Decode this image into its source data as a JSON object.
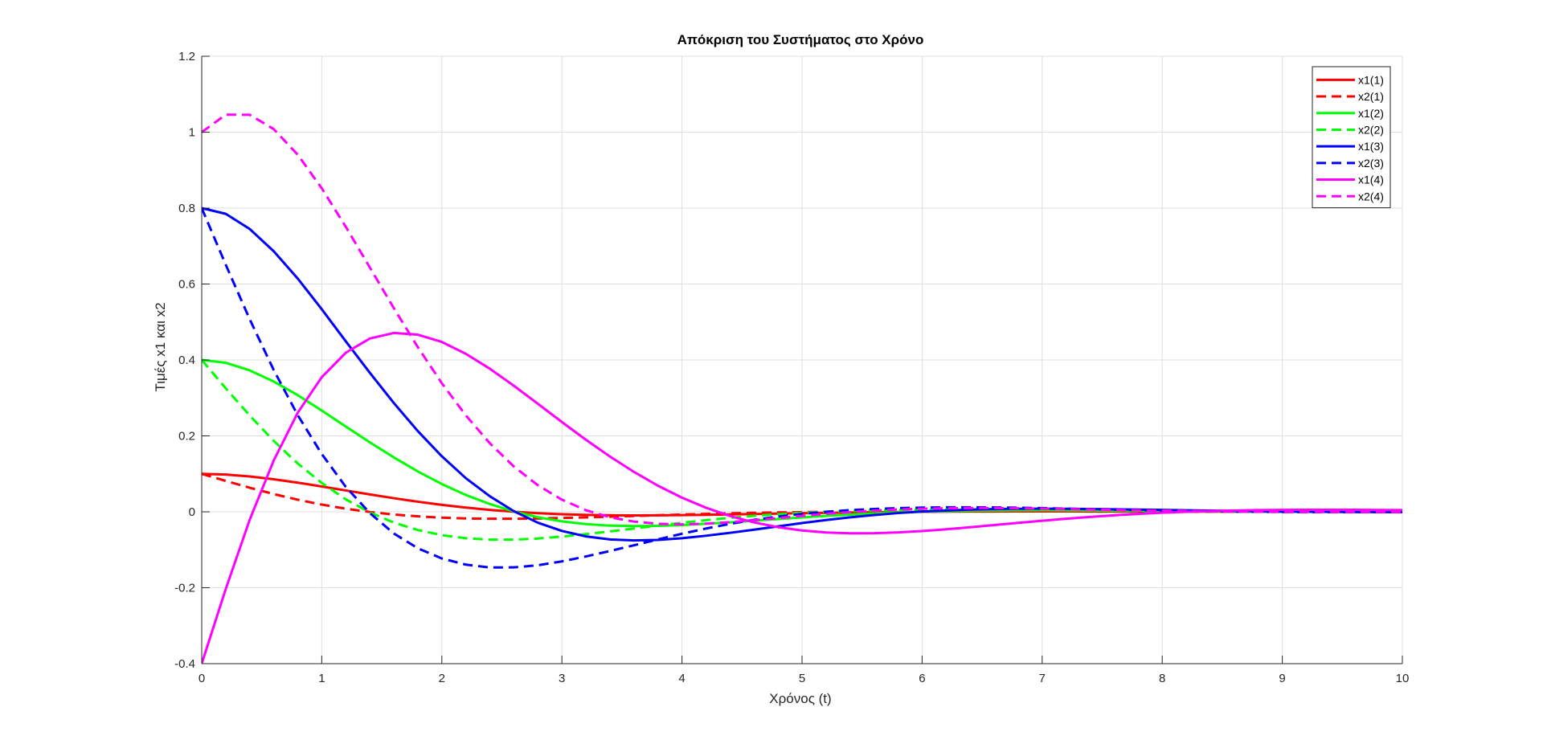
{
  "chart_data": {
    "type": "line",
    "title": "Απόκριση του Συστήματος στο Χρόνο",
    "xlabel": "Χρόνος (t)",
    "ylabel": "Τιμές x1 και x2",
    "xlim": [
      0,
      10
    ],
    "ylim": [
      -0.4,
      1.2
    ],
    "xticks": [
      0,
      1,
      2,
      3,
      4,
      5,
      6,
      7,
      8,
      9,
      10
    ],
    "yticks": [
      -0.4,
      -0.2,
      0,
      0.2,
      0.4,
      0.6,
      0.8,
      1,
      1.2
    ],
    "xtick_labels": [
      "0",
      "1",
      "2",
      "3",
      "4",
      "5",
      "6",
      "7",
      "8",
      "9",
      "10"
    ],
    "ytick_labels": [
      "-0.4",
      "-0.2",
      "0",
      "0.2",
      "0.4",
      "0.6",
      "0.8",
      "1",
      "1.2"
    ],
    "grid": true,
    "legend_position": "top-right",
    "x": [
      0,
      0.2,
      0.4,
      0.6,
      0.8,
      1.0,
      1.2,
      1.4,
      1.6,
      1.8,
      2.0,
      2.2,
      2.4,
      2.6,
      2.8,
      3.0,
      3.2,
      3.4,
      3.6,
      3.8,
      4.0,
      4.2,
      4.4,
      4.6,
      4.8,
      5.0,
      5.2,
      5.4,
      5.6,
      5.8,
      6.0,
      6.2,
      6.4,
      6.6,
      6.8,
      7.0,
      7.2,
      7.4,
      7.6,
      7.8,
      8.0,
      8.2,
      8.4,
      8.6,
      8.8,
      9.0,
      9.2,
      9.4,
      9.6,
      9.8,
      10.0
    ],
    "series": [
      {
        "name": "x1(1)",
        "color": "#FF0000",
        "style": "solid",
        "values": [
          0.1,
          0.0981,
          0.0931,
          0.0858,
          0.0768,
          0.0667,
          0.0562,
          0.0458,
          0.0358,
          0.0266,
          0.0183,
          0.0111,
          0.0051,
          0.0002,
          -0.0036,
          -0.0063,
          -0.0081,
          -0.0091,
          -0.0094,
          -0.0093,
          -0.0087,
          -0.0079,
          -0.0069,
          -0.0059,
          -0.0048,
          -0.0037,
          -0.0027,
          -0.0018,
          -0.0011,
          -0.0004,
          0.0001,
          0.0004,
          0.0007,
          0.0009,
          0.001,
          0.001,
          0.001,
          0.0009,
          0.0008,
          0.0007,
          0.0006,
          0.0005,
          0.0004,
          0.0003,
          0.0002,
          0.0001,
          0.0,
          -0.0,
          -0.0001,
          -0.0001,
          -0.0001
        ]
      },
      {
        "name": "x2(1)",
        "color": "#FF0000",
        "style": "dashed",
        "values": [
          0.1,
          0.0814,
          0.0634,
          0.0467,
          0.0318,
          0.019,
          0.0082,
          -0.0004,
          -0.0071,
          -0.012,
          -0.0154,
          -0.0174,
          -0.0183,
          -0.0183,
          -0.0176,
          -0.0163,
          -0.0147,
          -0.0129,
          -0.011,
          -0.0091,
          -0.0072,
          -0.0055,
          -0.004,
          -0.0027,
          -0.0016,
          -0.0007,
          0.0,
          0.0006,
          0.001,
          0.0012,
          0.0014,
          0.0015,
          0.0015,
          0.0014,
          0.0013,
          0.0012,
          0.001,
          0.0009,
          0.0007,
          0.0006,
          0.0004,
          0.0003,
          0.0002,
          0.0001,
          0.0,
          -0.0,
          -0.0001,
          -0.0001,
          -0.0001,
          -0.0001,
          -0.0001
        ]
      },
      {
        "name": "x1(2)",
        "color": "#00FF00",
        "style": "solid",
        "values": [
          0.4,
          0.3925,
          0.3725,
          0.3431,
          0.3072,
          0.2667,
          0.2246,
          0.1831,
          0.1433,
          0.1063,
          0.0731,
          0.0443,
          0.0204,
          0.0008,
          -0.0143,
          -0.0252,
          -0.0324,
          -0.0364,
          -0.0377,
          -0.037,
          -0.0348,
          -0.0315,
          -0.0277,
          -0.0235,
          -0.0191,
          -0.0149,
          -0.0108,
          -0.0073,
          -0.0042,
          -0.0017,
          0.0004,
          0.0017,
          0.0029,
          0.0035,
          0.0039,
          0.0041,
          0.0039,
          0.0036,
          0.0033,
          0.0029,
          0.0024,
          0.002,
          0.0016,
          0.0012,
          0.0008,
          0.0005,
          0.0002,
          -0.0,
          -0.0002,
          -0.0003,
          -0.0004
        ]
      },
      {
        "name": "x2(2)",
        "color": "#00FF00",
        "style": "dashed",
        "values": [
          0.4,
          0.3255,
          0.2535,
          0.1866,
          0.1272,
          0.0761,
          0.0328,
          -0.0016,
          -0.0285,
          -0.048,
          -0.0615,
          -0.0696,
          -0.0733,
          -0.0732,
          -0.0704,
          -0.0653,
          -0.0588,
          -0.0517,
          -0.0441,
          -0.0364,
          -0.0289,
          -0.022,
          -0.0159,
          -0.0106,
          -0.0063,
          -0.0028,
          0.0,
          0.0022,
          0.0038,
          0.0049,
          0.0055,
          0.0059,
          0.0059,
          0.0057,
          0.0054,
          0.0048,
          0.0041,
          0.0035,
          0.0028,
          0.0022,
          0.0017,
          0.0012,
          0.0007,
          0.0003,
          0.0,
          -0.0002,
          -0.0003,
          -0.0004,
          -0.0004,
          -0.0005,
          -0.0004
        ]
      },
      {
        "name": "x1(3)",
        "color": "#0000FF",
        "style": "solid",
        "values": [
          0.8,
          0.7849,
          0.7449,
          0.6863,
          0.6144,
          0.5335,
          0.4491,
          0.3662,
          0.2866,
          0.2126,
          0.1462,
          0.0885,
          0.0409,
          0.0016,
          -0.0287,
          -0.0504,
          -0.0648,
          -0.0728,
          -0.0754,
          -0.074,
          -0.0696,
          -0.0631,
          -0.0554,
          -0.047,
          -0.0383,
          -0.0297,
          -0.0216,
          -0.0145,
          -0.0084,
          -0.0033,
          0.0007,
          0.0035,
          0.0057,
          0.0071,
          0.0078,
          0.0081,
          0.0079,
          0.0073,
          0.0066,
          0.0058,
          0.0049,
          0.004,
          0.0031,
          0.0023,
          0.0016,
          0.0009,
          0.0004,
          -0.0001,
          -0.0004,
          -0.0006,
          -0.0008
        ]
      },
      {
        "name": "x2(3)",
        "color": "#0000FF",
        "style": "dashed",
        "values": [
          0.8,
          0.651,
          0.507,
          0.3732,
          0.2544,
          0.1522,
          0.0656,
          -0.0032,
          -0.057,
          -0.0961,
          -0.1229,
          -0.1392,
          -0.1466,
          -0.1464,
          -0.1408,
          -0.1306,
          -0.1176,
          -0.1033,
          -0.0882,
          -0.0728,
          -0.0578,
          -0.0441,
          -0.0318,
          -0.0212,
          -0.0126,
          -0.0056,
          0.0,
          0.0044,
          0.0075,
          0.0097,
          0.0111,
          0.0118,
          0.0119,
          0.0115,
          0.0107,
          0.0097,
          0.0083,
          0.007,
          0.0056,
          0.0044,
          0.0033,
          0.0023,
          0.0014,
          0.0007,
          0.0001,
          -0.0004,
          -0.0007,
          -0.0008,
          -0.0009,
          -0.0009,
          -0.0009
        ]
      },
      {
        "name": "x1(4)",
        "color": "#FF00FF",
        "style": "solid",
        "values": [
          -0.4,
          -0.2035,
          -0.0205,
          0.1354,
          0.2612,
          0.3546,
          0.419,
          0.4564,
          0.4711,
          0.4666,
          0.4474,
          0.4162,
          0.3768,
          0.332,
          0.2846,
          0.2365,
          0.1897,
          0.1456,
          0.1051,
          0.0688,
          0.0373,
          0.0107,
          -0.011,
          -0.0279,
          -0.0405,
          -0.0492,
          -0.0544,
          -0.0566,
          -0.0564,
          -0.0543,
          -0.0507,
          -0.046,
          -0.0407,
          -0.035,
          -0.0292,
          -0.0236,
          -0.0183,
          -0.0135,
          -0.0092,
          -0.0055,
          -0.0024,
          0.0001,
          0.002,
          0.0034,
          0.0044,
          0.005,
          0.0053,
          0.0053,
          0.0052,
          0.0048,
          0.0044
        ]
      },
      {
        "name": "x2(4)",
        "color": "#FF00FF",
        "style": "dashed",
        "values": [
          1.0,
          1.046,
          1.0458,
          1.008,
          0.9406,
          0.8521,
          0.7508,
          0.6437,
          0.5364,
          0.4336,
          0.3387,
          0.2538,
          0.1805,
          0.1192,
          0.0699,
          0.0319,
          0.0042,
          -0.0144,
          -0.0258,
          -0.0316,
          -0.033,
          -0.0312,
          -0.0273,
          -0.0221,
          -0.0164,
          -0.0107,
          -0.0054,
          -0.0007,
          0.0032,
          0.0061,
          0.0081,
          0.0093,
          0.0098,
          0.0097,
          0.0092,
          0.0084,
          0.0073,
          0.0062,
          0.005,
          0.0039,
          0.0029,
          0.002,
          0.0012,
          0.0006,
          0.0001,
          -0.0003,
          -0.0005,
          -0.0007,
          -0.0007,
          -0.0007,
          -0.0007
        ]
      }
    ]
  }
}
